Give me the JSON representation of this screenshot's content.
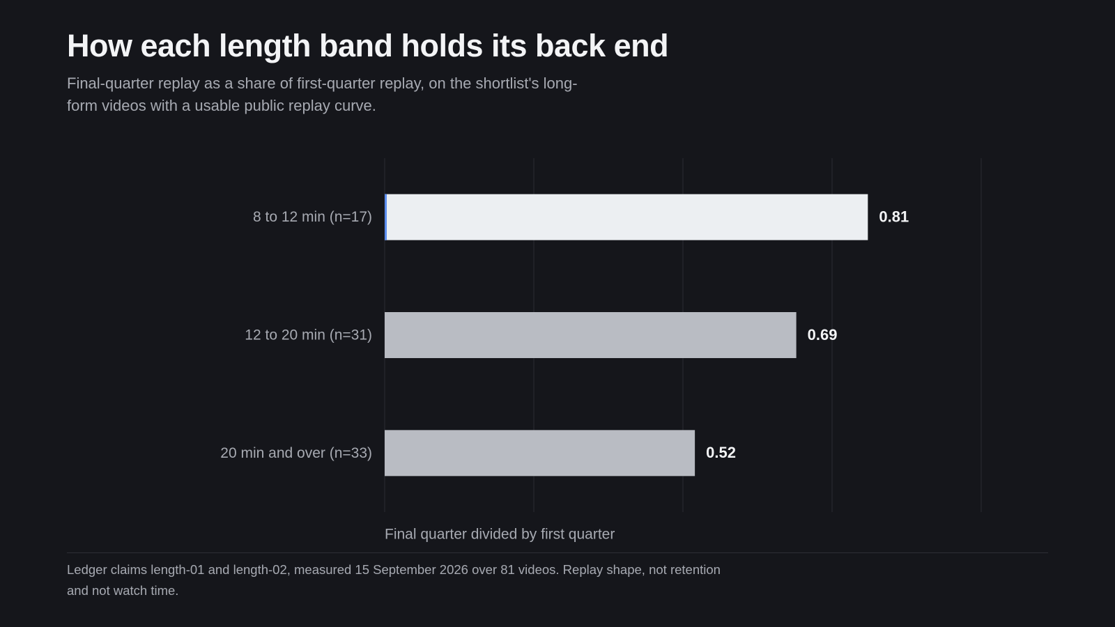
{
  "chart_data": {
    "type": "barh",
    "title": "How each length band holds its back end",
    "subtitle": "Final-quarter replay as a share of first-quarter replay, on the shortlist's long-form videos with a usable public replay curve.",
    "categories": [
      "8 to 12 min (n=17)",
      "12 to 20 min (n=31)",
      "20 min and over (n=33)"
    ],
    "values": [
      0.81,
      0.69,
      0.52
    ],
    "colors": [
      "#eceff2",
      "#b9bcc3",
      "#b9bcc3"
    ],
    "xlim": [
      0,
      1
    ],
    "xticks": [
      0,
      0.25,
      0.5,
      0.75,
      1
    ],
    "grid": true,
    "xlabel": "Final quarter divided by first quarter",
    "footnote": "Ledger claims length-01 and length-02, measured 15 September 2026 over 81 videos. Replay shape, not retention and not watch time."
  }
}
